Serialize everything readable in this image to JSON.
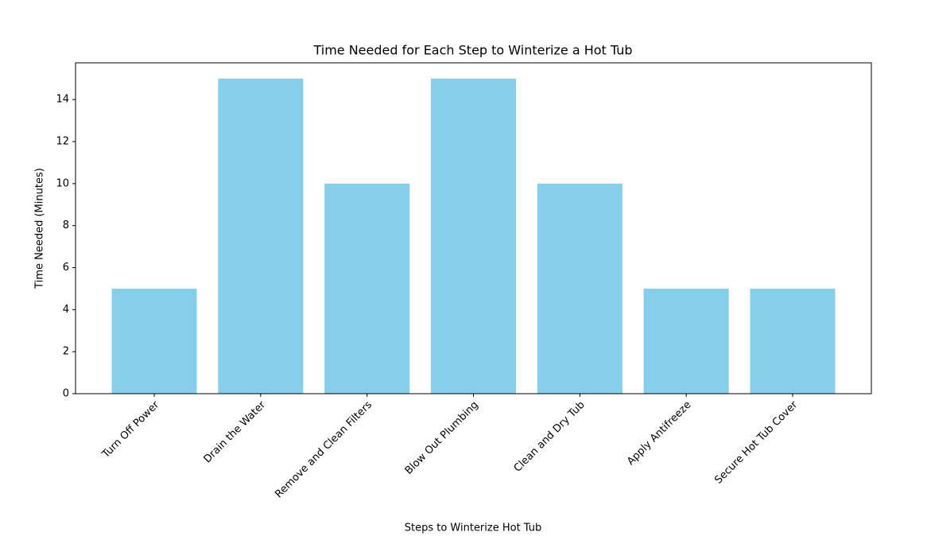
{
  "chart_data": {
    "type": "bar",
    "title": "Time Needed for Each Step to Winterize a Hot Tub",
    "xlabel": "Steps to Winterize Hot Tub",
    "ylabel": "Time Needed (Minutes)",
    "categories": [
      "Turn Off Power",
      "Drain the Water",
      "Remove and Clean Filters",
      "Blow Out Plumbing",
      "Clean and Dry Tub",
      "Apply Antifreeze",
      "Secure Hot Tub Cover"
    ],
    "values": [
      5,
      15,
      10,
      15,
      10,
      5,
      5
    ],
    "color": "#87ceeb",
    "ylim": [
      0,
      15.75
    ],
    "yticks": [
      0,
      2,
      4,
      6,
      8,
      10,
      12,
      14
    ],
    "grid": false
  }
}
